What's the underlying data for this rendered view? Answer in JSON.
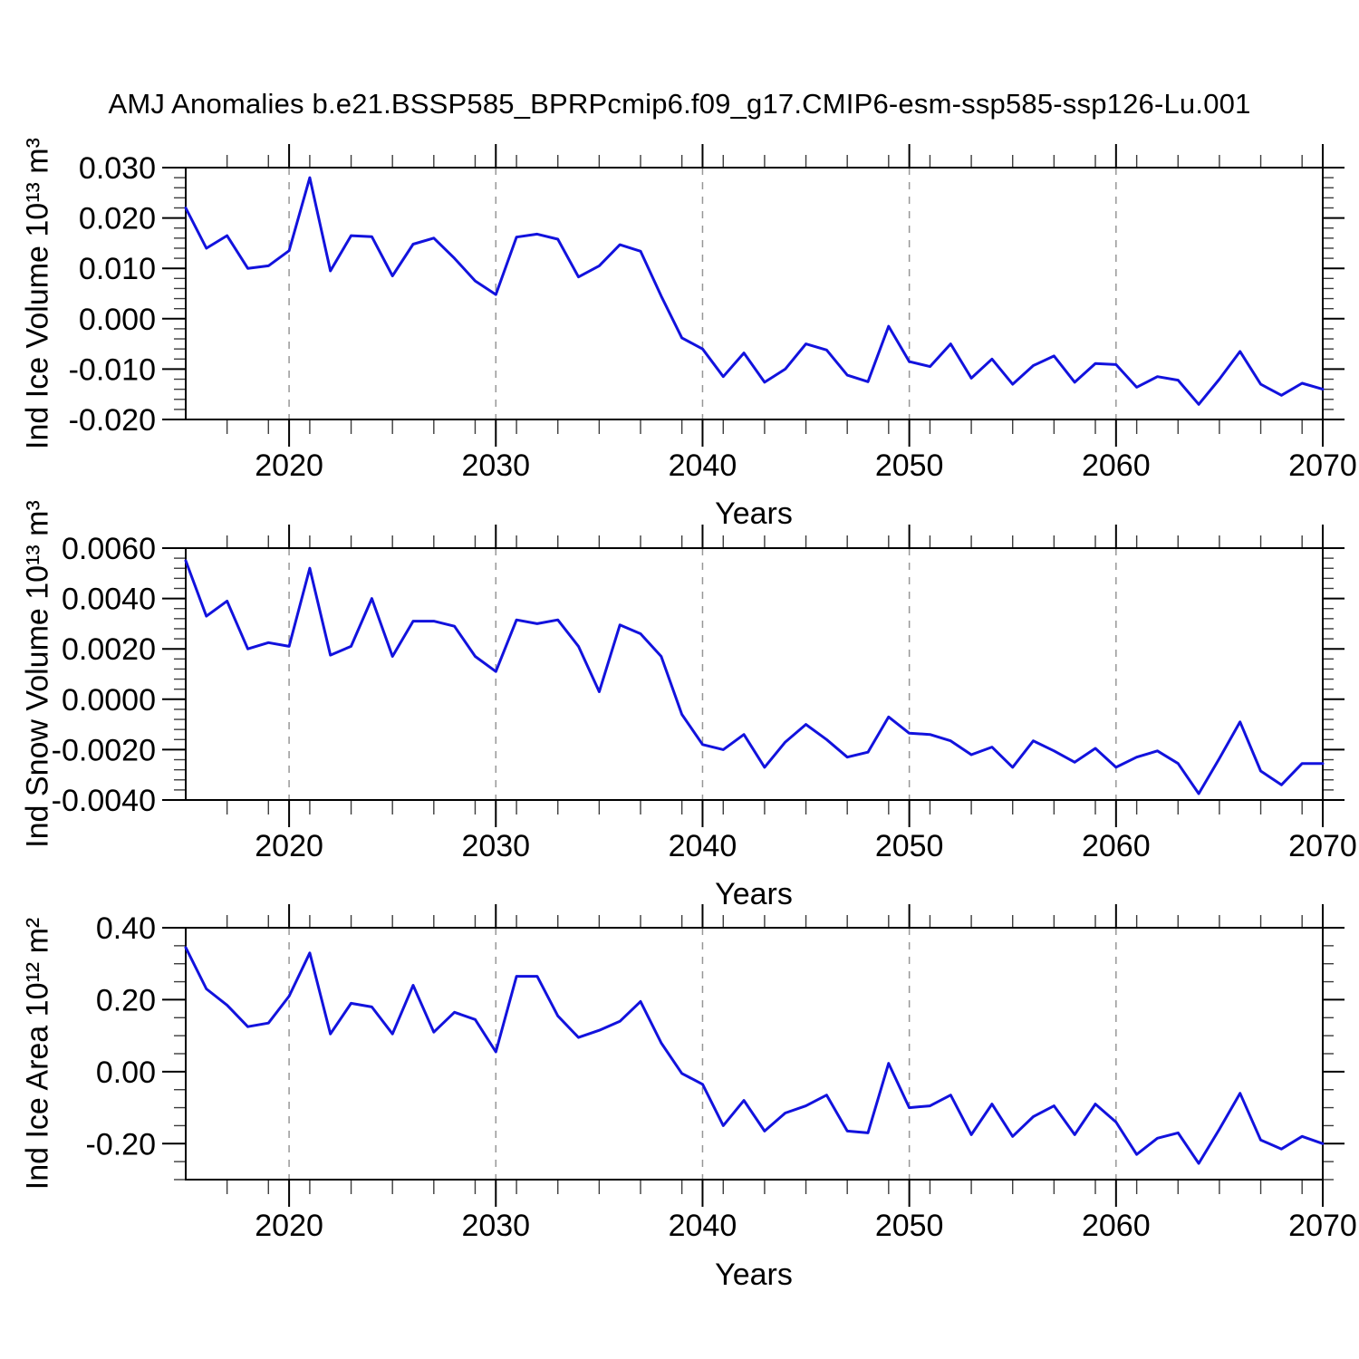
{
  "title": "AMJ Anomalies b.e21.BSSP585_BPRPcmip6.f09_g17.CMIP6-esm-ssp585-ssp126-Lu.001",
  "background_color": "#ffffff",
  "line_color": "#1212dd",
  "grid_color": "#979797",
  "years": [
    2015,
    2016,
    2017,
    2018,
    2019,
    2020,
    2021,
    2022,
    2023,
    2024,
    2025,
    2026,
    2027,
    2028,
    2029,
    2030,
    2031,
    2032,
    2033,
    2034,
    2035,
    2036,
    2037,
    2038,
    2039,
    2040,
    2041,
    2042,
    2043,
    2044,
    2045,
    2046,
    2047,
    2048,
    2049,
    2050,
    2051,
    2052,
    2053,
    2054,
    2055,
    2056,
    2057,
    2058,
    2059,
    2060,
    2061,
    2062,
    2063,
    2064,
    2065,
    2066,
    2067,
    2068,
    2069,
    2070
  ],
  "x_axis": {
    "label": "Years",
    "tick_labels": [
      "2020",
      "2030",
      "2040",
      "2050",
      "2060",
      "2070"
    ],
    "minor_step_years": 2,
    "gridline_years": [
      2020,
      2030,
      2040,
      2050,
      2060
    ],
    "range": [
      2015,
      2070
    ]
  },
  "chart_data": [
    {
      "type": "line",
      "name": "ind-ice-volume",
      "ylabel": "Ind Ice Volume 10¹³ m³",
      "xlabel": "Years",
      "yticks": [
        "0.030",
        "0.020",
        "0.010",
        "0.000",
        "-0.010",
        "-0.020"
      ],
      "ylim": [
        -0.02,
        0.03
      ],
      "y_minor_step": 0.002,
      "grid": "vertical-dashed-decades",
      "legend": "none",
      "values": [
        0.022,
        0.014,
        0.0165,
        0.01,
        0.0105,
        0.0135,
        0.028,
        0.0095,
        0.0165,
        0.0163,
        0.0085,
        0.0148,
        0.016,
        0.012,
        0.0075,
        0.0048,
        0.0162,
        0.0168,
        0.0158,
        0.0083,
        0.0105,
        0.0147,
        0.0134,
        0.0045,
        -0.0038,
        -0.006,
        -0.0115,
        -0.0068,
        -0.0126,
        -0.01,
        -0.005,
        -0.0062,
        -0.0112,
        -0.0125,
        -0.0015,
        -0.0085,
        -0.0095,
        -0.005,
        -0.0118,
        -0.008,
        -0.013,
        -0.0093,
        -0.0074,
        -0.0126,
        -0.0089,
        -0.0091,
        -0.0136,
        -0.0115,
        -0.0122,
        -0.017,
        -0.012,
        -0.0065,
        -0.013,
        -0.0152,
        -0.0128,
        -0.014
      ]
    },
    {
      "type": "line",
      "name": "ind-snow-volume",
      "ylabel": "Ind Snow Volume 10¹³ m³",
      "xlabel": "Years",
      "yticks": [
        "0.0060",
        "0.0040",
        "0.0020",
        "0.0000",
        "-0.0020",
        "-0.0040"
      ],
      "ylim": [
        -0.004,
        0.006
      ],
      "y_minor_step": 0.0004,
      "grid": "vertical-dashed-decades",
      "legend": "none",
      "values": [
        0.0055,
        0.0033,
        0.0039,
        0.002,
        0.00225,
        0.0021,
        0.0052,
        0.00175,
        0.0021,
        0.004,
        0.0017,
        0.0031,
        0.0031,
        0.0029,
        0.0017,
        0.0011,
        0.00315,
        0.003,
        0.00315,
        0.0021,
        0.0003,
        0.00295,
        0.0026,
        0.0017,
        -0.0006,
        -0.0018,
        -0.002,
        -0.0014,
        -0.0027,
        -0.0017,
        -0.001,
        -0.0016,
        -0.0023,
        -0.0021,
        -0.0007,
        -0.00135,
        -0.0014,
        -0.00165,
        -0.0022,
        -0.0019,
        -0.0027,
        -0.00165,
        -0.00205,
        -0.0025,
        -0.00195,
        -0.0027,
        -0.0023,
        -0.00205,
        -0.00255,
        -0.00375,
        -0.00235,
        -0.0009,
        -0.00285,
        -0.0034,
        -0.00255,
        -0.00255
      ]
    },
    {
      "type": "line",
      "name": "ind-ice-area",
      "ylabel": "Ind Ice Area 10¹² m²",
      "xlabel": "Years",
      "yticks": [
        "0.40",
        "0.20",
        "0.00",
        "-0.20"
      ],
      "ylim": [
        -0.3,
        0.4
      ],
      "y_minor_step": 0.05,
      "grid": "vertical-dashed-decades",
      "legend": "none",
      "values": [
        0.345,
        0.23,
        0.185,
        0.125,
        0.135,
        0.21,
        0.33,
        0.105,
        0.19,
        0.18,
        0.105,
        0.24,
        0.11,
        0.165,
        0.145,
        0.055,
        0.265,
        0.265,
        0.155,
        0.095,
        0.115,
        0.14,
        0.195,
        0.08,
        -0.005,
        -0.035,
        -0.15,
        -0.08,
        -0.165,
        -0.115,
        -0.095,
        -0.065,
        -0.165,
        -0.17,
        0.023,
        -0.1,
        -0.095,
        -0.065,
        -0.175,
        -0.09,
        -0.18,
        -0.125,
        -0.095,
        -0.175,
        -0.09,
        -0.14,
        -0.23,
        -0.185,
        -0.17,
        -0.255,
        -0.16,
        -0.06,
        -0.19,
        -0.215,
        -0.18,
        -0.2
      ]
    }
  ]
}
